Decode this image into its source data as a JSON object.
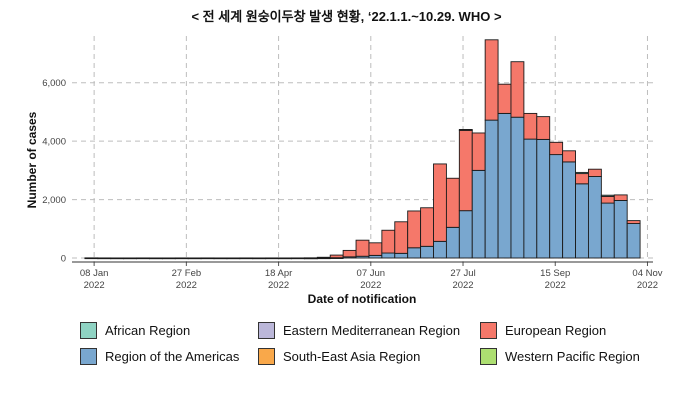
{
  "title": "< 전 세계 원숭이두창 발생 현황, ‘22.1.1.~10.29. WHO >",
  "chart_data": {
    "type": "bar",
    "stacked": true,
    "xlabel": "Date of notification",
    "ylabel": "Number of cases",
    "ylim": [
      0,
      7600
    ],
    "yticks": [
      0,
      2000,
      4000,
      6000
    ],
    "ytick_labels": [
      "0",
      "2,000",
      "4,000",
      "6,000"
    ],
    "xlim": [
      "2021-12-27",
      "2022-11-07"
    ],
    "xticks": [
      {
        "date": "2022-01-08",
        "label_line1": "08 Jan",
        "label_line2": "2022"
      },
      {
        "date": "2022-02-27",
        "label_line1": "27 Feb",
        "label_line2": "2022"
      },
      {
        "date": "2022-04-18",
        "label_line1": "18 Apr",
        "label_line2": "2022"
      },
      {
        "date": "2022-06-07",
        "label_line1": "07 Jun",
        "label_line2": "2022"
      },
      {
        "date": "2022-07-27",
        "label_line1": "27 Jul",
        "label_line2": "2022"
      },
      {
        "date": "2022-09-15",
        "label_line1": "15 Sep",
        "label_line2": "2022"
      },
      {
        "date": "2022-11-04",
        "label_line1": "04 Nov",
        "label_line2": "2022"
      }
    ],
    "grid": true,
    "legend_position": "bottom",
    "series": [
      {
        "name": "African Region",
        "color": "#8fd3c3"
      },
      {
        "name": "Eastern Mediterranean Region",
        "color": "#bbb7d9"
      },
      {
        "name": "European Region",
        "color": "#f5786a"
      },
      {
        "name": "Region of the Americas",
        "color": "#79a7cf"
      },
      {
        "name": "South-East Asia Region",
        "color": "#f9a84a"
      },
      {
        "name": "Western Pacific Region",
        "color": "#addf71"
      }
    ],
    "stack_order": [
      "Region of the Americas",
      "European Region",
      "African Region",
      "Eastern Mediterranean Region",
      "South-East Asia Region",
      "Western Pacific Region"
    ],
    "weeks": [
      {
        "start": "2022-01-03",
        "values": {
          "Region of the Americas": 5
        }
      },
      {
        "start": "2022-01-10",
        "values": {
          "Region of the Americas": 3
        }
      },
      {
        "start": "2022-01-17",
        "values": {
          "Region of the Americas": 2
        }
      },
      {
        "start": "2022-01-24",
        "values": {
          "Region of the Americas": 2
        }
      },
      {
        "start": "2022-01-31",
        "values": {
          "Region of the Americas": 3
        }
      },
      {
        "start": "2022-02-07",
        "values": {
          "Region of the Americas": 2
        }
      },
      {
        "start": "2022-02-14",
        "values": {
          "Region of the Americas": 2
        }
      },
      {
        "start": "2022-02-21",
        "values": {
          "Region of the Americas": 3
        }
      },
      {
        "start": "2022-02-28",
        "values": {
          "Region of the Americas": 2
        }
      },
      {
        "start": "2022-03-07",
        "values": {
          "Region of the Americas": 3
        }
      },
      {
        "start": "2022-03-14",
        "values": {
          "Region of the Americas": 2
        }
      },
      {
        "start": "2022-03-21",
        "values": {
          "Region of the Americas": 2
        }
      },
      {
        "start": "2022-03-28",
        "values": {
          "Region of the Americas": 3
        }
      },
      {
        "start": "2022-04-04",
        "values": {
          "Region of the Americas": 2
        }
      },
      {
        "start": "2022-04-11",
        "values": {
          "Region of the Americas": 3
        }
      },
      {
        "start": "2022-04-18",
        "values": {
          "Region of the Americas": 2
        }
      },
      {
        "start": "2022-04-25",
        "values": {
          "Region of the Americas": 3
        }
      },
      {
        "start": "2022-05-02",
        "values": {
          "Region of the Americas": 3,
          "European Region": 2
        }
      },
      {
        "start": "2022-05-09",
        "values": {
          "Region of the Americas": 5,
          "European Region": 20
        }
      },
      {
        "start": "2022-05-16",
        "values": {
          "Region of the Americas": 10,
          "European Region": 90
        }
      },
      {
        "start": "2022-05-23",
        "values": {
          "Region of the Americas": 40,
          "European Region": 220
        }
      },
      {
        "start": "2022-05-30",
        "values": {
          "Region of the Americas": 60,
          "European Region": 550
        }
      },
      {
        "start": "2022-06-06",
        "values": {
          "Region of the Americas": 90,
          "European Region": 430
        }
      },
      {
        "start": "2022-06-13",
        "values": {
          "Region of the Americas": 170,
          "European Region": 780
        }
      },
      {
        "start": "2022-06-20",
        "values": {
          "Region of the Americas": 160,
          "European Region": 1080
        }
      },
      {
        "start": "2022-06-27",
        "values": {
          "Region of the Americas": 350,
          "European Region": 1260
        }
      },
      {
        "start": "2022-07-04",
        "values": {
          "Region of the Americas": 400,
          "European Region": 1320
        }
      },
      {
        "start": "2022-07-11",
        "values": {
          "Region of the Americas": 570,
          "European Region": 2650
        }
      },
      {
        "start": "2022-07-18",
        "values": {
          "Region of the Americas": 1050,
          "European Region": 1680
        }
      },
      {
        "start": "2022-07-25",
        "values": {
          "Region of the Americas": 1620,
          "European Region": 2750,
          "African Region": 30
        }
      },
      {
        "start": "2022-08-01",
        "values": {
          "Region of the Americas": 3000,
          "European Region": 1280
        }
      },
      {
        "start": "2022-08-08",
        "values": {
          "Region of the Americas": 4720,
          "European Region": 2750
        }
      },
      {
        "start": "2022-08-15",
        "values": {
          "Region of the Americas": 4950,
          "European Region": 1000
        }
      },
      {
        "start": "2022-08-22",
        "values": {
          "Region of the Americas": 4820,
          "European Region": 1900
        }
      },
      {
        "start": "2022-08-29",
        "values": {
          "Region of the Americas": 4070,
          "European Region": 880
        }
      },
      {
        "start": "2022-09-05",
        "values": {
          "Region of the Americas": 4060,
          "European Region": 780
        }
      },
      {
        "start": "2022-09-12",
        "values": {
          "Region of the Americas": 3540,
          "European Region": 420
        }
      },
      {
        "start": "2022-09-19",
        "values": {
          "Region of the Americas": 3290,
          "European Region": 380
        }
      },
      {
        "start": "2022-09-26",
        "values": {
          "Region of the Americas": 2540,
          "European Region": 350,
          "African Region": 40
        }
      },
      {
        "start": "2022-10-03",
        "values": {
          "Region of the Americas": 2790,
          "European Region": 250
        }
      },
      {
        "start": "2022-10-10",
        "values": {
          "Region of the Americas": 1880,
          "European Region": 230,
          "African Region": 40
        }
      },
      {
        "start": "2022-10-17",
        "values": {
          "Region of the Americas": 1970,
          "European Region": 190
        }
      },
      {
        "start": "2022-10-24",
        "values": {
          "Region of the Americas": 1180,
          "European Region": 100
        }
      }
    ]
  }
}
